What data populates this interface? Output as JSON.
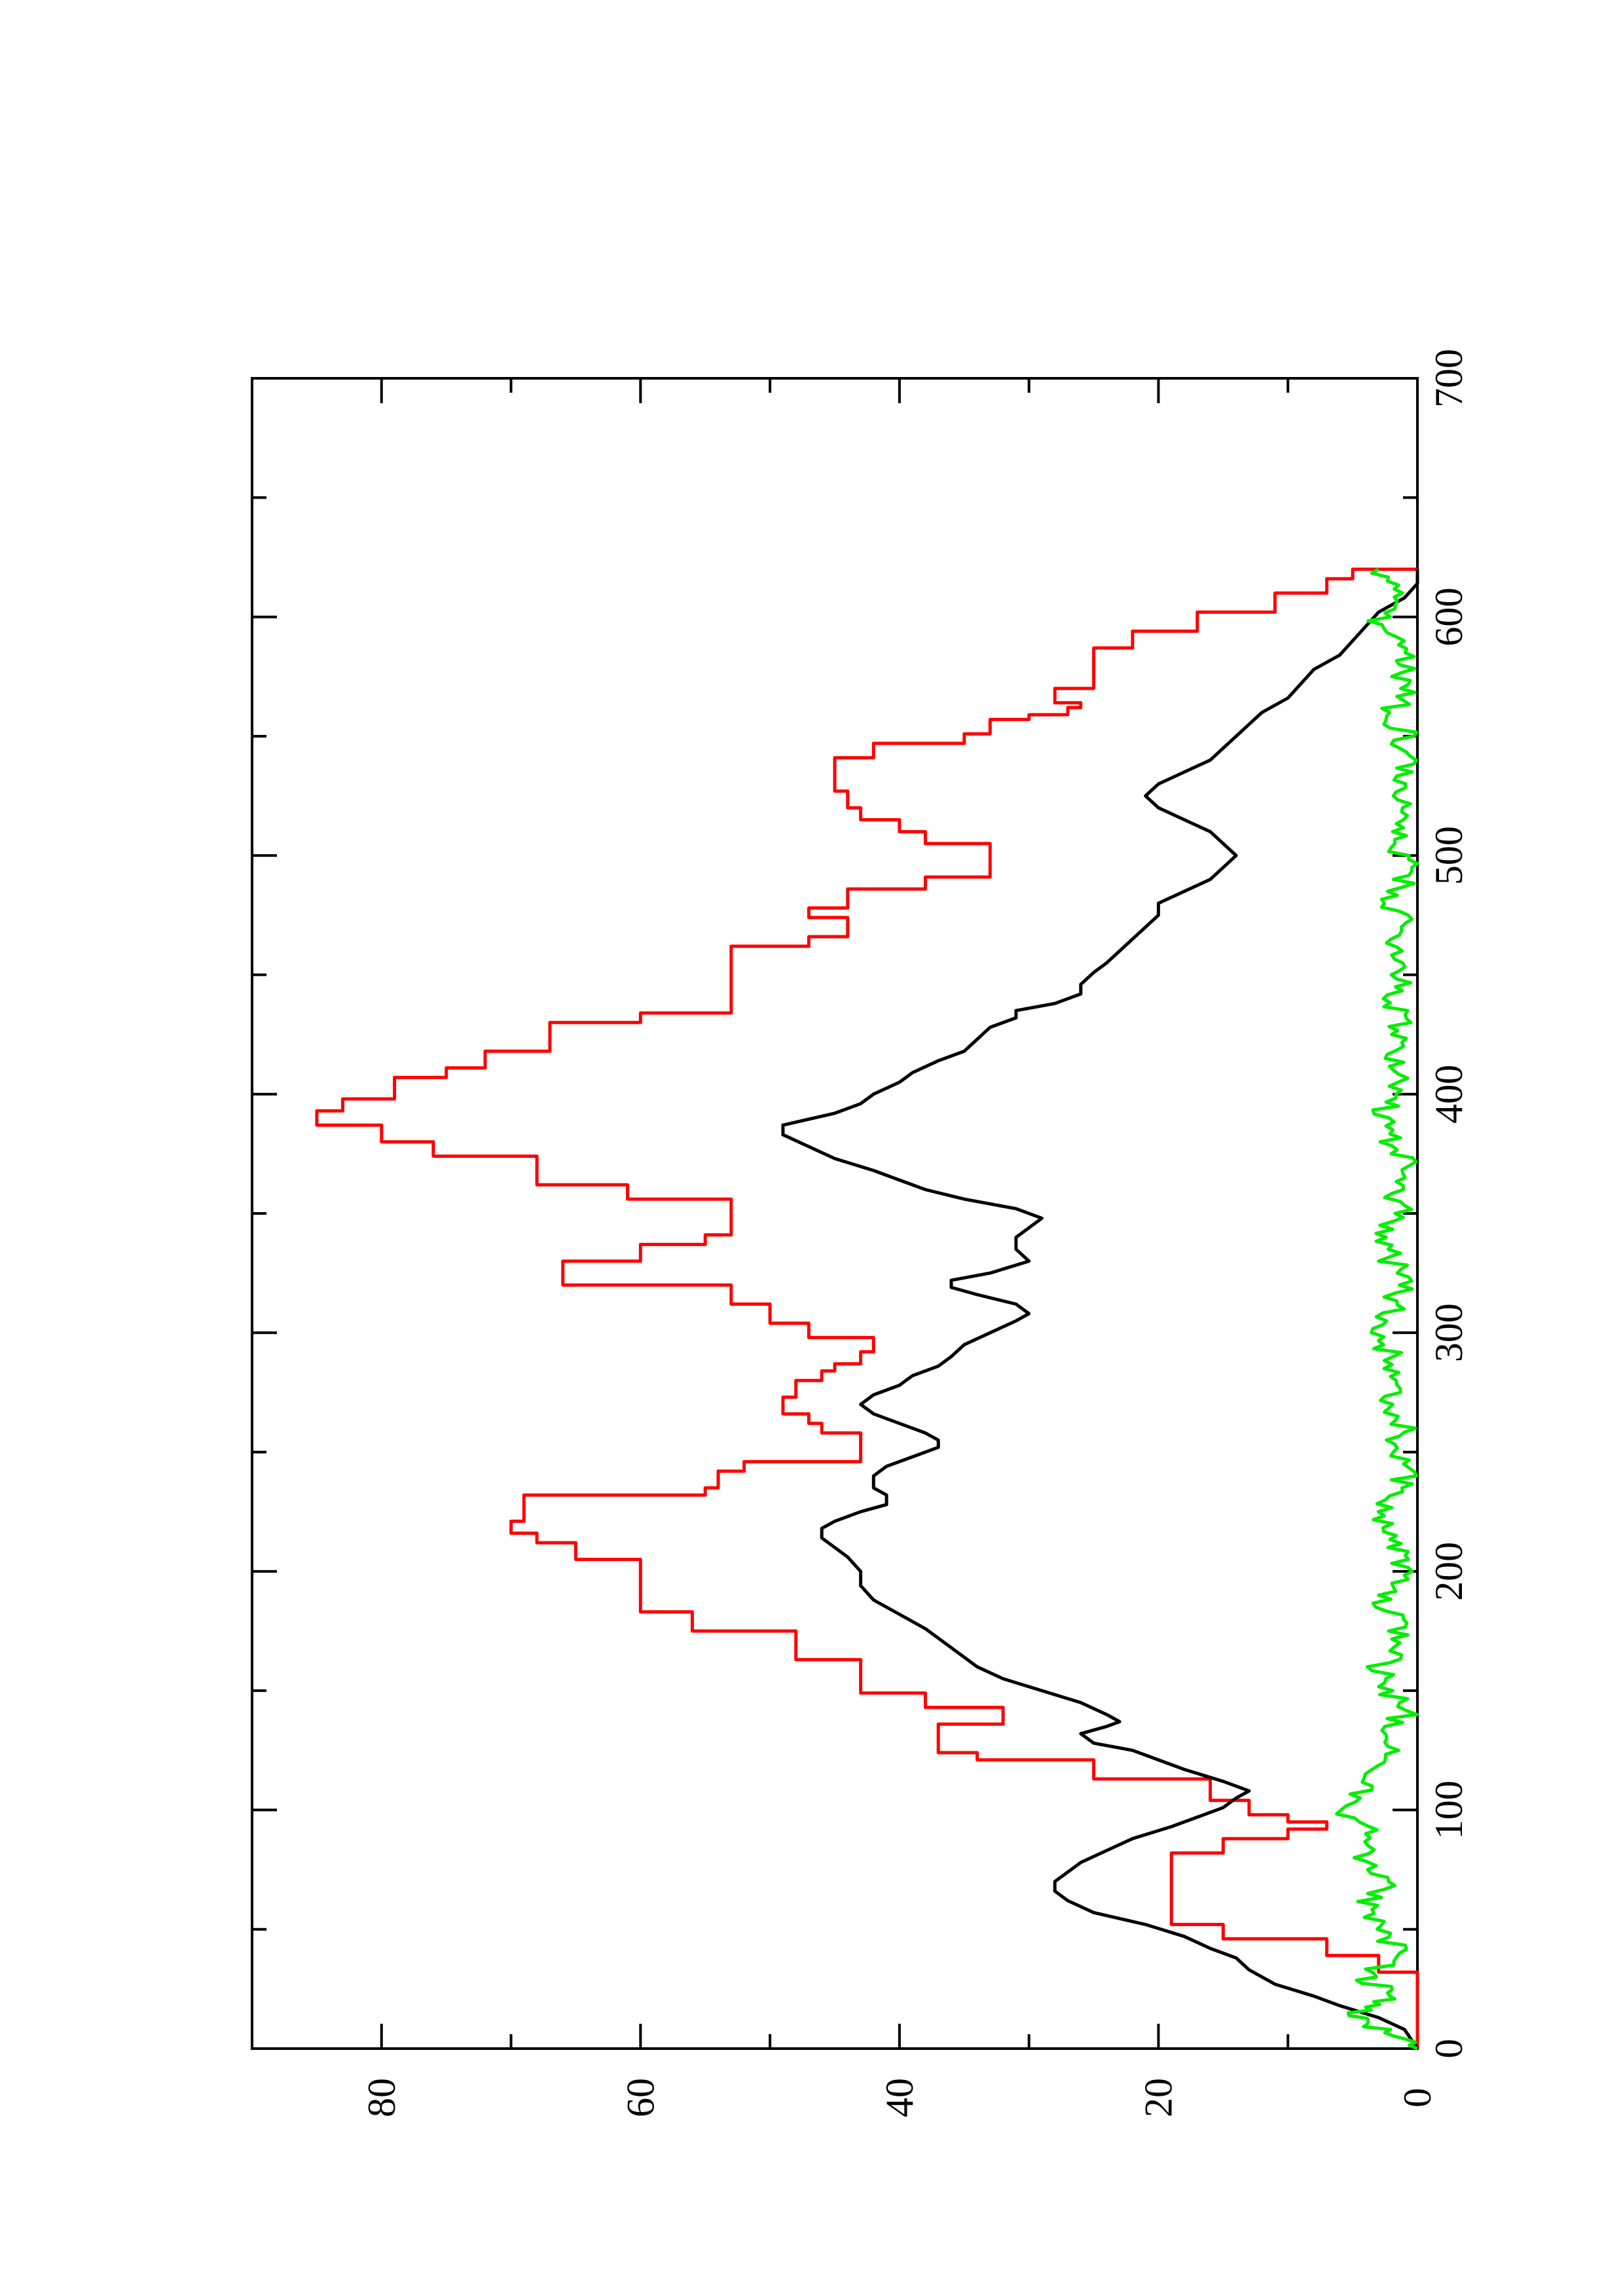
{
  "chart_data": {
    "type": "line",
    "orientation_note": "figure rotated 90 degrees counter-clockwise",
    "xlim": [
      0,
      700
    ],
    "ylim": [
      0,
      90
    ],
    "x_ticks": [
      0,
      100,
      200,
      300,
      400,
      500,
      600,
      700
    ],
    "x_minor_ticks": [
      50,
      150,
      250,
      350,
      450,
      550,
      650
    ],
    "y_ticks": [
      0,
      20,
      40,
      60,
      80
    ],
    "y_minor_ticks": [
      10,
      30,
      50,
      70
    ],
    "grid": false,
    "series": [
      {
        "color": "#ff0000",
        "step": true,
        "points": [
          [
            0,
            0
          ],
          [
            28,
            0
          ],
          [
            32,
            3
          ],
          [
            39,
            7
          ],
          [
            46,
            15
          ],
          [
            52,
            19
          ],
          [
            79,
            19
          ],
          [
            82,
            15
          ],
          [
            88,
            10
          ],
          [
            92,
            7
          ],
          [
            95,
            10
          ],
          [
            98,
            13
          ],
          [
            104,
            16
          ],
          [
            113,
            25
          ],
          [
            121,
            34
          ],
          [
            124,
            37
          ],
          [
            130,
            37
          ],
          [
            136,
            32
          ],
          [
            143,
            38
          ],
          [
            149,
            43
          ],
          [
            155,
            43
          ],
          [
            163,
            48
          ],
          [
            175,
            56
          ],
          [
            183,
            60
          ],
          [
            199,
            60
          ],
          [
            205,
            65
          ],
          [
            212,
            68
          ],
          [
            216,
            70
          ],
          [
            219,
            70
          ],
          [
            221,
            69
          ],
          [
            232,
            55
          ],
          [
            235,
            54
          ],
          [
            242,
            52
          ],
          [
            246,
            43
          ],
          [
            253,
            43
          ],
          [
            258,
            46
          ],
          [
            262,
            47
          ],
          [
            266,
            49
          ],
          [
            273,
            48
          ],
          [
            280,
            46
          ],
          [
            284,
            45
          ],
          [
            287,
            43
          ],
          [
            292,
            42
          ],
          [
            298,
            47
          ],
          [
            304,
            50
          ],
          [
            312,
            53
          ],
          [
            320,
            66
          ],
          [
            330,
            60
          ],
          [
            337,
            55
          ],
          [
            341,
            53
          ],
          [
            347,
            53
          ],
          [
            356,
            61
          ],
          [
            362,
            68
          ],
          [
            374,
            76
          ],
          [
            380,
            80
          ],
          [
            387,
            85
          ],
          [
            393,
            83
          ],
          [
            398,
            79
          ],
          [
            407,
            75
          ],
          [
            411,
            72
          ],
          [
            418,
            67
          ],
          [
            430,
            60
          ],
          [
            434,
            53
          ],
          [
            454,
            53
          ],
          [
            462,
            47
          ],
          [
            466,
            44
          ],
          [
            471,
            44
          ],
          [
            474,
            47
          ],
          [
            478,
            44
          ],
          [
            486,
            38
          ],
          [
            491,
            33
          ],
          [
            502,
            33
          ],
          [
            505,
            38
          ],
          [
            510,
            40
          ],
          [
            515,
            43
          ],
          [
            520,
            44
          ],
          [
            527,
            45
          ],
          [
            537,
            45
          ],
          [
            541,
            42
          ],
          [
            547,
            35
          ],
          [
            551,
            33
          ],
          [
            557,
            30
          ],
          [
            559,
            27
          ],
          [
            562,
            26
          ],
          [
            564,
            28
          ],
          [
            567,
            28
          ],
          [
            570,
            25
          ],
          [
            580,
            25
          ],
          [
            587,
            22
          ],
          [
            594,
            17
          ],
          [
            602,
            11
          ],
          [
            610,
            7
          ],
          [
            616,
            5
          ],
          [
            620,
            0
          ]
        ]
      },
      {
        "color": "#000000",
        "step": false,
        "points": [
          [
            0,
            0
          ],
          [
            8,
            1
          ],
          [
            13,
            3
          ],
          [
            18,
            6
          ],
          [
            22,
            8
          ],
          [
            27,
            11
          ],
          [
            33,
            13
          ],
          [
            38,
            14
          ],
          [
            42,
            16
          ],
          [
            47,
            18
          ],
          [
            52,
            21
          ],
          [
            57,
            25
          ],
          [
            62,
            27
          ],
          [
            66,
            28
          ],
          [
            70,
            28
          ],
          [
            74,
            27
          ],
          [
            78,
            26
          ],
          [
            83,
            24
          ],
          [
            88,
            22
          ],
          [
            93,
            19
          ],
          [
            97,
            17
          ],
          [
            101,
            15
          ],
          [
            105,
            14
          ],
          [
            108,
            13
          ],
          [
            112,
            15
          ],
          [
            117,
            18
          ],
          [
            121,
            20
          ],
          [
            125,
            22
          ],
          [
            128,
            25
          ],
          [
            132,
            26
          ],
          [
            135,
            24
          ],
          [
            137,
            23
          ],
          [
            140,
            24
          ],
          [
            145,
            26
          ],
          [
            150,
            29
          ],
          [
            155,
            32
          ],
          [
            160,
            34
          ],
          [
            168,
            36
          ],
          [
            176,
            38
          ],
          [
            182,
            40
          ],
          [
            188,
            42
          ],
          [
            194,
            43
          ],
          [
            200,
            43
          ],
          [
            206,
            44
          ],
          [
            210,
            45
          ],
          [
            214,
            46
          ],
          [
            218,
            46
          ],
          [
            221,
            45
          ],
          [
            225,
            43
          ],
          [
            228,
            41
          ],
          [
            232,
            41
          ],
          [
            235,
            42
          ],
          [
            240,
            42
          ],
          [
            244,
            41
          ],
          [
            248,
            39
          ],
          [
            252,
            37
          ],
          [
            255,
            37
          ],
          [
            258,
            38
          ],
          [
            262,
            40
          ],
          [
            266,
            42
          ],
          [
            270,
            43
          ],
          [
            274,
            42
          ],
          [
            278,
            40
          ],
          [
            282,
            39
          ],
          [
            286,
            37
          ],
          [
            290,
            36
          ],
          [
            295,
            35
          ],
          [
            300,
            33
          ],
          [
            305,
            31
          ],
          [
            308,
            30
          ],
          [
            312,
            31
          ],
          [
            316,
            34
          ],
          [
            319,
            36
          ],
          [
            322,
            36
          ],
          [
            325,
            33
          ],
          [
            330,
            30
          ],
          [
            335,
            31
          ],
          [
            340,
            31
          ],
          [
            344,
            30
          ],
          [
            348,
            29
          ],
          [
            352,
            31
          ],
          [
            356,
            35
          ],
          [
            360,
            38
          ],
          [
            364,
            40
          ],
          [
            368,
            42
          ],
          [
            373,
            45
          ],
          [
            378,
            47
          ],
          [
            383,
            49
          ],
          [
            387,
            49
          ],
          [
            392,
            45
          ],
          [
            396,
            43
          ],
          [
            400,
            42
          ],
          [
            405,
            40
          ],
          [
            409,
            39
          ],
          [
            414,
            37
          ],
          [
            418,
            35
          ],
          [
            423,
            34
          ],
          [
            428,
            33
          ],
          [
            432,
            31
          ],
          [
            435,
            31
          ],
          [
            438,
            28
          ],
          [
            442,
            26
          ],
          [
            446,
            26
          ],
          [
            451,
            25
          ],
          [
            455,
            24
          ],
          [
            460,
            23
          ],
          [
            465,
            22
          ],
          [
            470,
            21
          ],
          [
            475,
            20
          ],
          [
            480,
            20
          ],
          [
            485,
            18
          ],
          [
            490,
            16
          ],
          [
            495,
            15
          ],
          [
            500,
            14
          ],
          [
            505,
            15
          ],
          [
            510,
            16
          ],
          [
            515,
            18
          ],
          [
            520,
            20
          ],
          [
            525,
            21
          ],
          [
            530,
            20
          ],
          [
            535,
            18
          ],
          [
            540,
            16
          ],
          [
            545,
            15
          ],
          [
            550,
            14
          ],
          [
            555,
            13
          ],
          [
            560,
            12
          ],
          [
            566,
            10
          ],
          [
            572,
            9
          ],
          [
            578,
            8
          ],
          [
            584,
            6
          ],
          [
            590,
            5
          ],
          [
            596,
            4
          ],
          [
            602,
            3
          ],
          [
            608,
            1
          ],
          [
            614,
            0
          ],
          [
            620,
            0
          ]
        ]
      },
      {
        "color": "#00ee00",
        "step": false,
        "noise": true,
        "points": [
          [
            0,
            0
          ],
          [
            8,
            3
          ],
          [
            15,
            5
          ],
          [
            22,
            2
          ],
          [
            30,
            4
          ],
          [
            40,
            1
          ],
          [
            50,
            3
          ],
          [
            60,
            4
          ],
          [
            70,
            2
          ],
          [
            80,
            5
          ],
          [
            90,
            3
          ],
          [
            100,
            6
          ],
          [
            110,
            4
          ],
          [
            120,
            2
          ],
          [
            130,
            3
          ],
          [
            140,
            1
          ],
          [
            150,
            2
          ],
          [
            160,
            3
          ],
          [
            170,
            1
          ],
          [
            180,
            2
          ],
          [
            190,
            3
          ],
          [
            200,
            1
          ],
          [
            210,
            2
          ],
          [
            220,
            3
          ],
          [
            230,
            2
          ],
          [
            240,
            1
          ],
          [
            250,
            2
          ],
          [
            260,
            1
          ],
          [
            270,
            2
          ],
          [
            280,
            1
          ],
          [
            290,
            2
          ],
          [
            300,
            3
          ],
          [
            310,
            2
          ],
          [
            320,
            1
          ],
          [
            330,
            2
          ],
          [
            340,
            3
          ],
          [
            350,
            1
          ],
          [
            360,
            2
          ],
          [
            370,
            1
          ],
          [
            380,
            2
          ],
          [
            390,
            3
          ],
          [
            400,
            2
          ],
          [
            410,
            1
          ],
          [
            420,
            2
          ],
          [
            430,
            1
          ],
          [
            440,
            2
          ],
          [
            450,
            1
          ],
          [
            460,
            2
          ],
          [
            470,
            1
          ],
          [
            480,
            2
          ],
          [
            490,
            1
          ],
          [
            500,
            1
          ],
          [
            510,
            2
          ],
          [
            520,
            1
          ],
          [
            530,
            2
          ],
          [
            540,
            1
          ],
          [
            550,
            1
          ],
          [
            560,
            2
          ],
          [
            570,
            1
          ],
          [
            580,
            1
          ],
          [
            590,
            2
          ],
          [
            600,
            3
          ],
          [
            610,
            2
          ],
          [
            620,
            3
          ]
        ]
      }
    ]
  }
}
